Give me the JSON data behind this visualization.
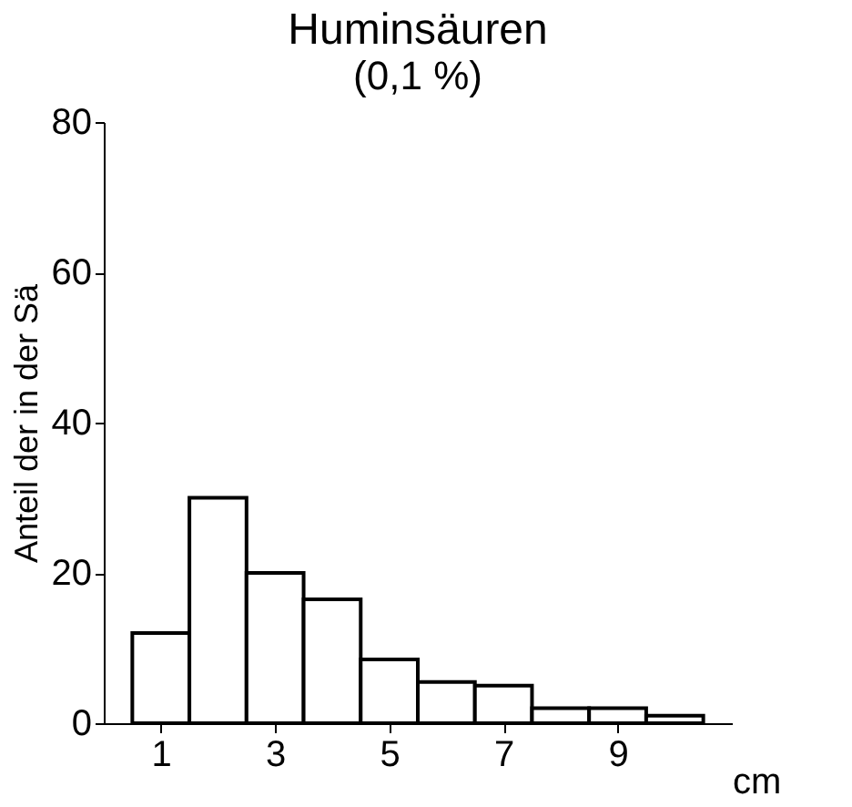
{
  "chart_data": {
    "type": "histogram",
    "title": "Huminsäuren",
    "subtitle": "(0,1 %)",
    "xlabel": "cm",
    "ylabel": "Anteil der in der Sä",
    "bins": [
      0.5,
      1.5,
      2.5,
      3.5,
      4.5,
      5.5,
      6.5,
      7.5,
      8.5,
      9.5,
      10.5
    ],
    "values": [
      12,
      30,
      20,
      16.5,
      8.5,
      5.5,
      5,
      2,
      2,
      1
    ],
    "color": "#ffffff",
    "xlim": [
      0,
      11
    ],
    "xticks": [
      1,
      3,
      5,
      7,
      9
    ],
    "ylim": [
      0,
      80
    ],
    "yticks": [
      0,
      20,
      40,
      60,
      80
    ],
    "grid": false
  }
}
